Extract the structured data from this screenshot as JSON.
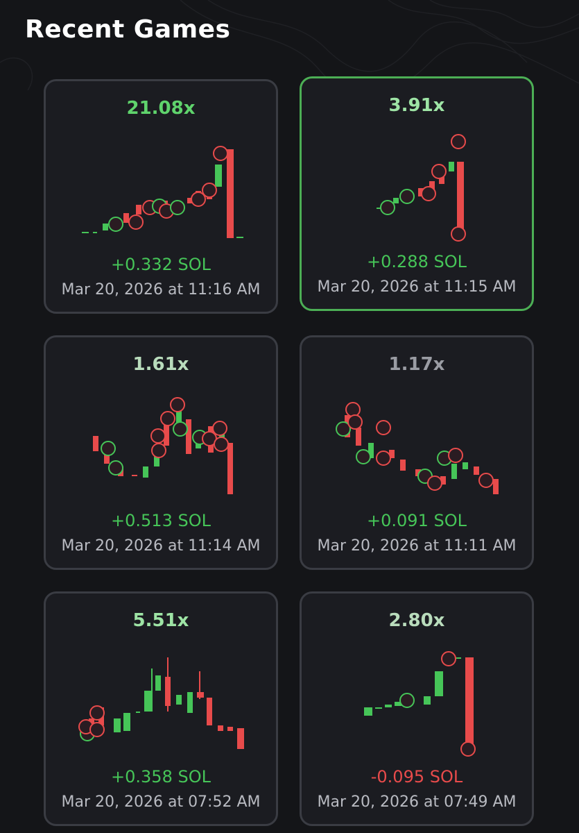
{
  "header": {
    "title": "Recent Games"
  },
  "colors": {
    "green": "#46c558",
    "red": "#e84b4b",
    "selected_border": "#4caf55",
    "dim_multiplier": "#9a9ca3"
  },
  "games": [
    {
      "multiplier": "21.08x",
      "profit": "+0.332 SOL",
      "date": "Mar 20, 2026 at 11:16 AM",
      "outcome": "win",
      "selected": false
    },
    {
      "multiplier": "3.91x",
      "profit": "+0.288 SOL",
      "date": "Mar 20, 2026 at 11:15 AM",
      "outcome": "win",
      "selected": true
    },
    {
      "multiplier": "1.61x",
      "profit": "+0.513 SOL",
      "date": "Mar 20, 2026 at 11:14 AM",
      "outcome": "win",
      "selected": false
    },
    {
      "multiplier": "1.17x",
      "profit": "+0.091 SOL",
      "date": "Mar 20, 2026 at 11:11 AM",
      "outcome": "win",
      "selected": false
    },
    {
      "multiplier": "5.51x",
      "profit": "+0.358 SOL",
      "date": "Mar 20, 2026 at 07:52 AM",
      "outcome": "win",
      "selected": false
    },
    {
      "multiplier": "2.80x",
      "profit": "-0.095 SOL",
      "date": "Mar 20, 2026 at 07:49 AM",
      "outcome": "loss",
      "selected": false
    }
  ]
}
